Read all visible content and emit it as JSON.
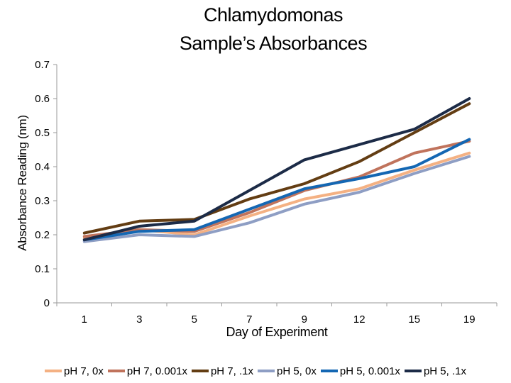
{
  "chart_data": {
    "type": "line",
    "title": [
      "Chlamydomonas",
      "Sample’s Absorbances"
    ],
    "xlabel": "Day of Experiment",
    "ylabel": "Absorbance Reading (nm)",
    "categories": [
      "1",
      "3",
      "5",
      "7",
      "9",
      "12",
      "15",
      "19"
    ],
    "ylim": [
      0,
      0.7
    ],
    "yticks": [
      "0",
      "0.1",
      "0.2",
      "0.3",
      "0.4",
      "0.5",
      "0.6",
      "0.7"
    ],
    "grid": false,
    "legend_position": "bottom",
    "series": [
      {
        "name": "pH 7, 0x",
        "color": "#f4b183",
        "values": [
          0.19,
          0.215,
          0.2,
          0.255,
          0.305,
          0.335,
          0.39,
          0.44
        ]
      },
      {
        "name": "pH 7, 0.001x",
        "color": "#c0735c",
        "values": [
          0.195,
          0.215,
          0.21,
          0.265,
          0.33,
          0.37,
          0.44,
          0.475
        ]
      },
      {
        "name": "pH 7, .1x",
        "color": "#633d13",
        "values": [
          0.205,
          0.24,
          0.245,
          0.305,
          0.35,
          0.415,
          0.5,
          0.585
        ]
      },
      {
        "name": "pH 5, 0x",
        "color": "#8e9ec4",
        "values": [
          0.18,
          0.2,
          0.195,
          0.235,
          0.29,
          0.325,
          0.38,
          0.43
        ]
      },
      {
        "name": "pH 5, 0.001x",
        "color": "#1467b3",
        "values": [
          0.185,
          0.21,
          0.215,
          0.275,
          0.335,
          0.365,
          0.4,
          0.48
        ]
      },
      {
        "name": "pH 5, .1x",
        "color": "#1c2b47",
        "values": [
          0.185,
          0.225,
          0.24,
          0.33,
          0.42,
          0.465,
          0.51,
          0.6
        ]
      }
    ]
  }
}
